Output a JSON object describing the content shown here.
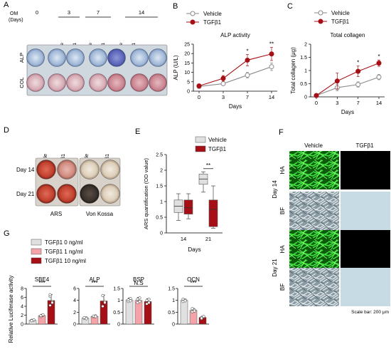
{
  "colors": {
    "vehicle": "#8a8a8a",
    "tgf": "#a50f15",
    "tgf_light": "#f4a3a8",
    "tgf_mid": "#ee5b63"
  },
  "panels": {
    "a": "A",
    "b": "B",
    "c": "C",
    "d": "D",
    "e": "E",
    "f": "F",
    "g": "G"
  },
  "panel_a": {
    "om_label": "OM",
    "days_label": "(Days)",
    "day_groups": [
      "0",
      "3",
      "7",
      "14"
    ],
    "col_labels": [
      "Vehicle",
      "TGFβ1",
      "Vehicle",
      "TGFβ1",
      "Vehicle",
      "TGFβ1"
    ],
    "row_labels": [
      "ALP",
      "COL"
    ]
  },
  "panel_d": {
    "col_labels": [
      "Vehicle",
      "TGFβ1",
      "Vehicle",
      "TGFβ1"
    ],
    "row_labels": [
      "Day 14",
      "Day 21"
    ],
    "stain_labels": [
      "ARS",
      "Von Kossa"
    ]
  },
  "panel_f": {
    "col_labels": [
      "Vehicle",
      "TGFβ1"
    ],
    "day_labels": [
      "Day 14",
      "Day 21"
    ],
    "row_labels": [
      "HA",
      "BF",
      "HA",
      "BF"
    ],
    "scale_bar": "Scale bar: 200 μm"
  },
  "chart_data": [
    {
      "id": "B",
      "type": "line",
      "title": "ALP activity",
      "xlabel": "Days",
      "ylabel": "ALP (U/L)",
      "x": [
        0,
        3,
        7,
        14
      ],
      "ylim": [
        0,
        25
      ],
      "yticks": [
        0,
        5,
        10,
        15,
        20,
        25
      ],
      "series": [
        {
          "name": "Vehicle",
          "values": [
            2.5,
            4.0,
            8.5,
            13.0
          ],
          "errors": [
            1.0,
            1.0,
            1.5,
            2.0
          ]
        },
        {
          "name": "TGFβ1",
          "values": [
            2.8,
            6.8,
            16.5,
            19.8
          ],
          "errors": [
            1.0,
            1.5,
            3.0,
            3.5
          ]
        }
      ],
      "significance": [
        "",
        "*",
        "*",
        "**"
      ],
      "legend": "top-left"
    },
    {
      "id": "C",
      "type": "line",
      "title": "Total collagen",
      "xlabel": "Days",
      "ylabel": "Total collagen (μg)",
      "x": [
        0,
        3,
        7,
        14
      ],
      "ylim": [
        0,
        2.0
      ],
      "yticks": [
        0,
        0.5,
        1.0,
        1.5,
        2.0
      ],
      "series": [
        {
          "name": "Vehicle",
          "values": [
            0.05,
            0.35,
            0.47,
            0.75
          ],
          "errors": [
            0.03,
            0.12,
            0.1,
            0.1
          ]
        },
        {
          "name": "TGFβ1",
          "values": [
            0.05,
            0.6,
            0.97,
            1.28
          ],
          "errors": [
            0.03,
            0.3,
            0.2,
            0.12
          ]
        }
      ],
      "significance": [
        "",
        "",
        "*",
        "*"
      ],
      "legend": "top-left"
    },
    {
      "id": "E",
      "type": "box",
      "xlabel": "Days",
      "ylabel": "ARS quantification (OD value)",
      "categories": [
        "14",
        "21"
      ],
      "ylim": [
        0,
        2.5
      ],
      "yticks": [
        0,
        0.5,
        1.0,
        1.5,
        2.0,
        2.5
      ],
      "series": [
        {
          "name": "Vehicle",
          "boxes": [
            {
              "min": 0.4,
              "q1": 0.65,
              "median": 0.85,
              "q3": 1.05,
              "max": 1.25
            },
            {
              "min": 1.3,
              "q1": 1.55,
              "median": 1.72,
              "q3": 1.88,
              "max": 1.95
            }
          ]
        },
        {
          "name": "TGFβ1",
          "boxes": [
            {
              "min": 0.45,
              "q1": 0.6,
              "median": 0.8,
              "q3": 1.05,
              "max": 1.25
            },
            {
              "min": 0.15,
              "q1": 0.2,
              "median": 0.75,
              "q3": 1.05,
              "max": 1.5
            }
          ]
        }
      ],
      "significance": [
        "",
        "**"
      ],
      "legend": "top-right"
    },
    {
      "id": "G",
      "type": "bar",
      "ylabel": "Relative Luciferase activity",
      "series_names": [
        "TGFβ1 0 ng/ml",
        "TGFβ1 1 ng/ml",
        "TGFβ1 10 ng/ml"
      ],
      "subplots": [
        {
          "title": "SBE4",
          "ylim": [
            0,
            8
          ],
          "yticks": [
            0,
            2,
            4,
            6,
            8
          ],
          "values": [
            0.85,
            1.9,
            5.3
          ],
          "errors": [
            0.2,
            0.3,
            1.3
          ],
          "significance": "***"
        },
        {
          "title": "ALP",
          "ylim": [
            0,
            6
          ],
          "yticks": [
            0,
            2,
            4,
            6
          ],
          "values": [
            1.0,
            1.3,
            3.9
          ],
          "errors": [
            0.1,
            0.2,
            1.0
          ],
          "significance": "***"
        },
        {
          "title": "BSP",
          "ylim": [
            0,
            1.5
          ],
          "yticks": [
            0,
            0.5,
            1.0,
            1.5
          ],
          "values": [
            1.02,
            1.0,
            0.95
          ],
          "errors": [
            0.08,
            0.12,
            0.12
          ],
          "significance": "N.S"
        },
        {
          "title": "OCN",
          "ylim": [
            0,
            1.5
          ],
          "yticks": [
            0,
            0.5,
            1.0,
            1.5
          ],
          "values": [
            1.0,
            0.58,
            0.28
          ],
          "errors": [
            0.06,
            0.08,
            0.05
          ],
          "significance": "***"
        }
      ]
    }
  ]
}
